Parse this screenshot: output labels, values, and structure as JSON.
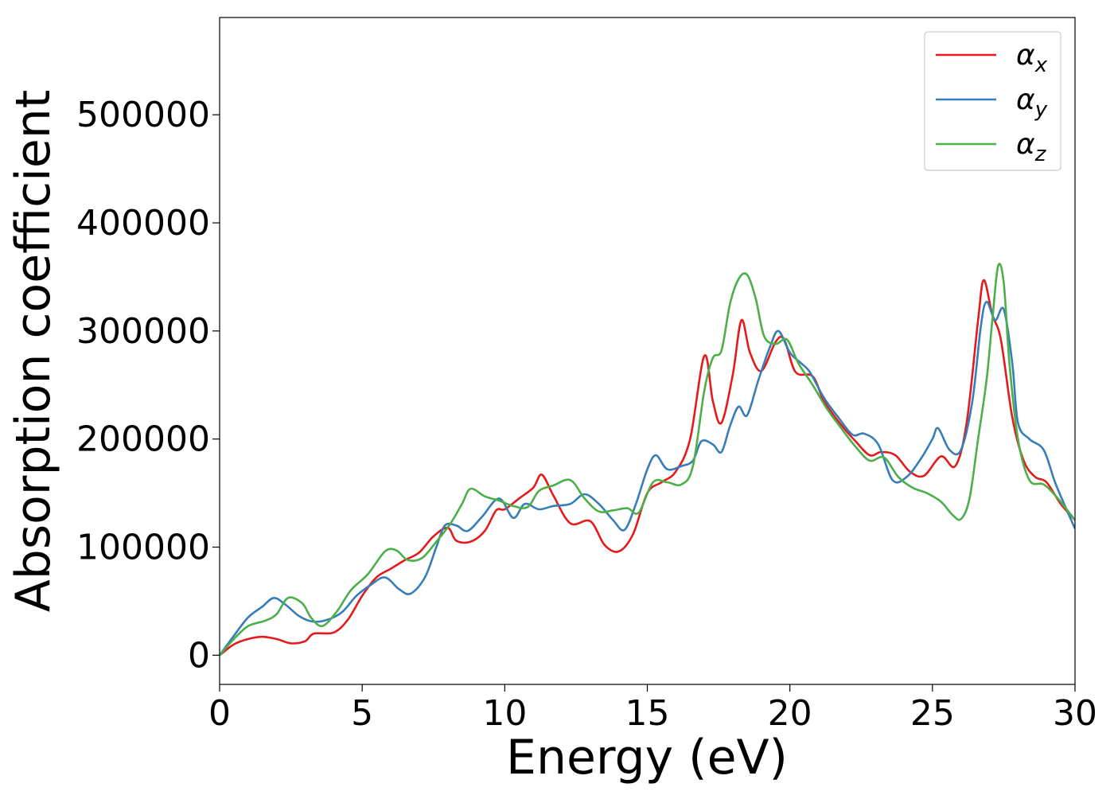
{
  "chart_data": {
    "type": "line",
    "xlabel": "Energy (eV)",
    "ylabel": "Absorption coefficient",
    "xlim": [
      0,
      30
    ],
    "ylim": [
      -27000,
      590000
    ],
    "x_ticks": [
      0,
      5,
      10,
      15,
      20,
      25,
      30
    ],
    "x_tick_labels": [
      "0",
      "5",
      "10",
      "15",
      "20",
      "25",
      "30"
    ],
    "y_ticks": [
      0,
      100000,
      200000,
      300000,
      400000,
      500000
    ],
    "y_tick_labels": [
      "0",
      "100000",
      "200000",
      "300000",
      "400000",
      "500000"
    ],
    "grid": false,
    "legend": {
      "position": "top-right",
      "entries": [
        {
          "symbol": "α",
          "subscript": "x",
          "color": "#e41a1c"
        },
        {
          "symbol": "α",
          "subscript": "y",
          "color": "#377eb8"
        },
        {
          "symbol": "α",
          "subscript": "z",
          "color": "#4daf4a"
        }
      ]
    },
    "series": [
      {
        "name": "αx",
        "color": "#e41a1c",
        "points": [
          [
            0,
            0
          ],
          [
            0.5,
            10000
          ],
          [
            1,
            15000
          ],
          [
            1.5,
            17000
          ],
          [
            2,
            15000
          ],
          [
            2.5,
            11000
          ],
          [
            3,
            13000
          ],
          [
            3.3,
            20000
          ],
          [
            4,
            21000
          ],
          [
            4.5,
            33000
          ],
          [
            5,
            55000
          ],
          [
            5.5,
            72000
          ],
          [
            6,
            80000
          ],
          [
            6.5,
            88000
          ],
          [
            7,
            95000
          ],
          [
            7.5,
            110000
          ],
          [
            8,
            118000
          ],
          [
            8.3,
            106000
          ],
          [
            8.8,
            105000
          ],
          [
            9.3,
            115000
          ],
          [
            9.7,
            134000
          ],
          [
            10,
            135000
          ],
          [
            10.5,
            145000
          ],
          [
            11,
            155000
          ],
          [
            11.3,
            167000
          ],
          [
            11.7,
            148000
          ],
          [
            12.3,
            122000
          ],
          [
            13,
            124000
          ],
          [
            13.5,
            102000
          ],
          [
            14,
            96000
          ],
          [
            14.5,
            112000
          ],
          [
            15,
            150000
          ],
          [
            15.5,
            160000
          ],
          [
            16,
            170000
          ],
          [
            16.5,
            200000
          ],
          [
            17,
            277000
          ],
          [
            17.3,
            235000
          ],
          [
            17.6,
            215000
          ],
          [
            18,
            260000
          ],
          [
            18.3,
            310000
          ],
          [
            18.6,
            280000
          ],
          [
            19,
            263000
          ],
          [
            19.5,
            290000
          ],
          [
            19.8,
            292000
          ],
          [
            20.2,
            262000
          ],
          [
            20.8,
            258000
          ],
          [
            21.2,
            235000
          ],
          [
            21.8,
            213000
          ],
          [
            22.3,
            198000
          ],
          [
            22.8,
            185000
          ],
          [
            23.2,
            188000
          ],
          [
            23.7,
            185000
          ],
          [
            24.2,
            170000
          ],
          [
            24.7,
            166000
          ],
          [
            25.3,
            184000
          ],
          [
            25.8,
            175000
          ],
          [
            26.2,
            215000
          ],
          [
            26.6,
            310000
          ],
          [
            26.8,
            347000
          ],
          [
            27.1,
            315000
          ],
          [
            27.4,
            292000
          ],
          [
            27.8,
            220000
          ],
          [
            28.2,
            180000
          ],
          [
            28.6,
            165000
          ],
          [
            29,
            160000
          ],
          [
            29.5,
            140000
          ],
          [
            30,
            125000
          ]
        ]
      },
      {
        "name": "αy",
        "color": "#377eb8",
        "points": [
          [
            0,
            0
          ],
          [
            0.5,
            18000
          ],
          [
            1,
            35000
          ],
          [
            1.5,
            45000
          ],
          [
            1.9,
            53000
          ],
          [
            2.3,
            47000
          ],
          [
            2.8,
            36000
          ],
          [
            3.3,
            31000
          ],
          [
            3.8,
            33000
          ],
          [
            4.3,
            40000
          ],
          [
            4.8,
            55000
          ],
          [
            5.3,
            65000
          ],
          [
            5.8,
            72000
          ],
          [
            6.3,
            61000
          ],
          [
            6.7,
            57000
          ],
          [
            7.2,
            72000
          ],
          [
            7.6,
            100000
          ],
          [
            7.9,
            120000
          ],
          [
            8.3,
            120000
          ],
          [
            8.7,
            115000
          ],
          [
            9.2,
            128000
          ],
          [
            9.8,
            145000
          ],
          [
            10.3,
            127000
          ],
          [
            10.7,
            140000
          ],
          [
            11.2,
            135000
          ],
          [
            11.7,
            138000
          ],
          [
            12.3,
            140000
          ],
          [
            12.8,
            149000
          ],
          [
            13.3,
            140000
          ],
          [
            13.8,
            125000
          ],
          [
            14.2,
            116000
          ],
          [
            14.6,
            140000
          ],
          [
            15,
            172000
          ],
          [
            15.3,
            185000
          ],
          [
            15.7,
            172000
          ],
          [
            16.2,
            175000
          ],
          [
            16.6,
            180000
          ],
          [
            16.9,
            198000
          ],
          [
            17.3,
            195000
          ],
          [
            17.6,
            188000
          ],
          [
            17.9,
            212000
          ],
          [
            18.2,
            230000
          ],
          [
            18.5,
            222000
          ],
          [
            18.9,
            255000
          ],
          [
            19.3,
            285000
          ],
          [
            19.6,
            300000
          ],
          [
            20,
            280000
          ],
          [
            20.4,
            270000
          ],
          [
            20.7,
            262000
          ],
          [
            21.2,
            238000
          ],
          [
            21.7,
            220000
          ],
          [
            22.2,
            204000
          ],
          [
            22.6,
            205000
          ],
          [
            23.1,
            195000
          ],
          [
            23.6,
            162000
          ],
          [
            24.1,
            165000
          ],
          [
            24.6,
            182000
          ],
          [
            25,
            200000
          ],
          [
            25.2,
            210000
          ],
          [
            25.6,
            190000
          ],
          [
            26,
            190000
          ],
          [
            26.4,
            235000
          ],
          [
            26.7,
            305000
          ],
          [
            26.9,
            327000
          ],
          [
            27.2,
            310000
          ],
          [
            27.5,
            320000
          ],
          [
            27.8,
            270000
          ],
          [
            28,
            215000
          ],
          [
            28.4,
            200000
          ],
          [
            28.9,
            190000
          ],
          [
            29.3,
            160000
          ],
          [
            29.7,
            135000
          ],
          [
            30,
            117000
          ]
        ]
      },
      {
        "name": "αz",
        "color": "#4daf4a",
        "points": [
          [
            0,
            0
          ],
          [
            0.5,
            15000
          ],
          [
            1,
            27000
          ],
          [
            1.6,
            32000
          ],
          [
            2,
            38000
          ],
          [
            2.4,
            53000
          ],
          [
            2.9,
            48000
          ],
          [
            3.2,
            35000
          ],
          [
            3.6,
            27000
          ],
          [
            4.1,
            40000
          ],
          [
            4.6,
            60000
          ],
          [
            5.2,
            75000
          ],
          [
            5.8,
            96000
          ],
          [
            6.2,
            97000
          ],
          [
            6.6,
            88000
          ],
          [
            7.1,
            90000
          ],
          [
            7.6,
            105000
          ],
          [
            8.1,
            122000
          ],
          [
            8.5,
            140000
          ],
          [
            8.8,
            154000
          ],
          [
            9.3,
            147000
          ],
          [
            9.8,
            143000
          ],
          [
            10.3,
            138000
          ],
          [
            10.8,
            137000
          ],
          [
            11.2,
            152000
          ],
          [
            11.7,
            157000
          ],
          [
            12.3,
            162000
          ],
          [
            12.8,
            145000
          ],
          [
            13.3,
            133000
          ],
          [
            13.8,
            134000
          ],
          [
            14.3,
            136000
          ],
          [
            14.7,
            132000
          ],
          [
            15.2,
            160000
          ],
          [
            15.7,
            160000
          ],
          [
            16.2,
            158000
          ],
          [
            16.6,
            175000
          ],
          [
            17,
            245000
          ],
          [
            17.3,
            275000
          ],
          [
            17.6,
            282000
          ],
          [
            17.9,
            325000
          ],
          [
            18.2,
            348000
          ],
          [
            18.5,
            352000
          ],
          [
            18.8,
            330000
          ],
          [
            19.1,
            295000
          ],
          [
            19.5,
            288000
          ],
          [
            19.9,
            292000
          ],
          [
            20.3,
            270000
          ],
          [
            20.8,
            250000
          ],
          [
            21.3,
            228000
          ],
          [
            21.8,
            210000
          ],
          [
            22.3,
            193000
          ],
          [
            22.8,
            180000
          ],
          [
            23.3,
            183000
          ],
          [
            23.8,
            165000
          ],
          [
            24.3,
            155000
          ],
          [
            24.8,
            150000
          ],
          [
            25.3,
            142000
          ],
          [
            25.7,
            130000
          ],
          [
            26,
            126000
          ],
          [
            26.3,
            145000
          ],
          [
            26.6,
            200000
          ],
          [
            26.9,
            255000
          ],
          [
            27.1,
            310000
          ],
          [
            27.3,
            360000
          ],
          [
            27.5,
            345000
          ],
          [
            27.7,
            270000
          ],
          [
            28,
            200000
          ],
          [
            28.4,
            162000
          ],
          [
            28.9,
            158000
          ],
          [
            29.4,
            145000
          ],
          [
            30,
            125000
          ]
        ]
      }
    ]
  }
}
